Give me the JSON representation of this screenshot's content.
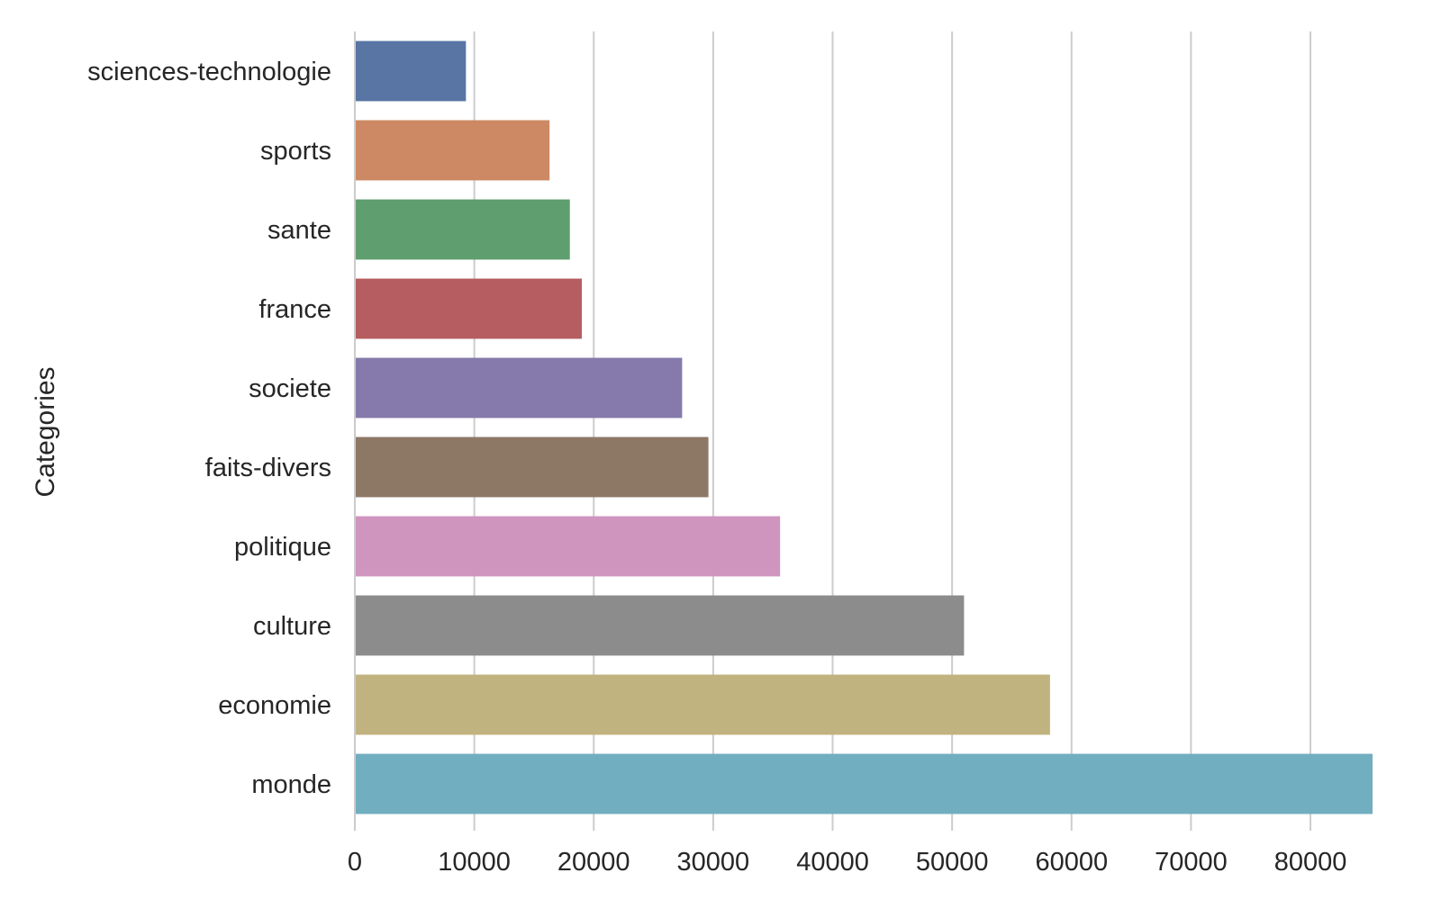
{
  "chart_data": {
    "type": "bar",
    "orientation": "horizontal",
    "title": "",
    "xlabel": "",
    "ylabel": "Categories",
    "categories": [
      "sciences-technologie",
      "sports",
      "sante",
      "france",
      "societe",
      "faits-divers",
      "politique",
      "culture",
      "economie",
      "monde"
    ],
    "values": [
      9300,
      16300,
      18000,
      19000,
      27400,
      29600,
      35600,
      51000,
      58200,
      85200
    ],
    "colors": [
      "#5875a4",
      "#cc8963",
      "#5f9e6e",
      "#b55d60",
      "#857aab",
      "#8d7866",
      "#d095bf",
      "#8c8c8c",
      "#c1b37f",
      "#71aec0"
    ],
    "xlim": [
      0,
      85200
    ],
    "xticks": [
      0,
      10000,
      20000,
      30000,
      40000,
      50000,
      60000,
      70000,
      80000
    ],
    "xtick_labels": [
      "0",
      "10000",
      "20000",
      "30000",
      "40000",
      "50000",
      "60000",
      "70000",
      "80000"
    ],
    "grid": "vertical"
  }
}
